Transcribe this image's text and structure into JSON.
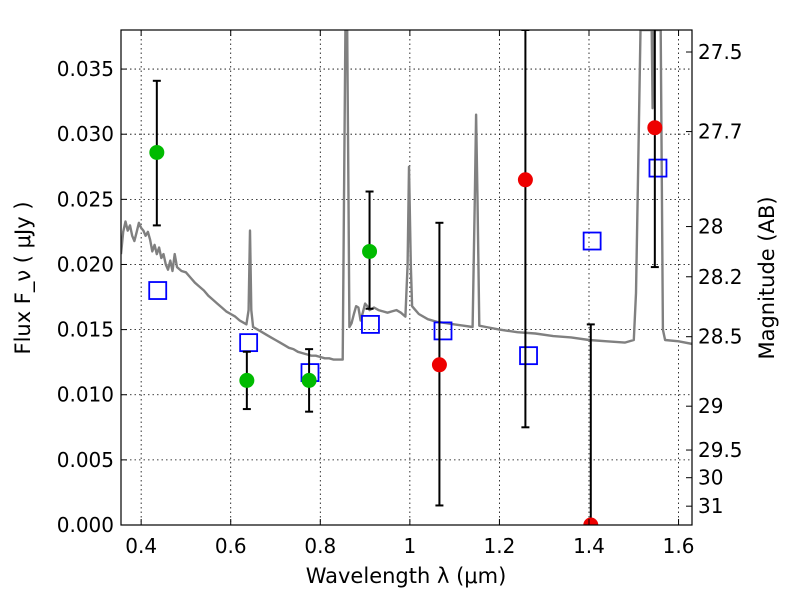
{
  "chart_data": {
    "type": "scatter",
    "title": "",
    "xlabel": "Wavelength  λ (μm)",
    "ylabel": "Flux  F_ν  ( μJy )",
    "ylabel_right": "Magnitude (AB)",
    "xlim": [
      0.355,
      1.63
    ],
    "ylim": [
      0.0,
      0.038
    ],
    "grid": true,
    "x_ticks": [
      {
        "value": 0.4,
        "label": "0.4"
      },
      {
        "value": 0.6,
        "label": "0.6"
      },
      {
        "value": 0.8,
        "label": "0.8"
      },
      {
        "value": 1.0,
        "label": "1"
      },
      {
        "value": 1.2,
        "label": "1.2"
      },
      {
        "value": 1.4,
        "label": "1.4"
      },
      {
        "value": 1.6,
        "label": "1.6"
      }
    ],
    "y_ticks": [
      {
        "value": 0.0,
        "label": "0.000"
      },
      {
        "value": 0.005,
        "label": "0.005"
      },
      {
        "value": 0.01,
        "label": "0.010"
      },
      {
        "value": 0.015,
        "label": "0.015"
      },
      {
        "value": 0.02,
        "label": "0.020"
      },
      {
        "value": 0.025,
        "label": "0.025"
      },
      {
        "value": 0.03,
        "label": "0.030"
      },
      {
        "value": 0.035,
        "label": "0.035"
      }
    ],
    "right_ticks": [
      {
        "mag": 27.5,
        "label": "27.5"
      },
      {
        "mag": 27.7,
        "label": "27.7"
      },
      {
        "mag": 28.0,
        "label": "28"
      },
      {
        "mag": 28.2,
        "label": "28.2"
      },
      {
        "mag": 28.5,
        "label": "28.5"
      },
      {
        "mag": 29.0,
        "label": "29"
      },
      {
        "mag": 29.5,
        "label": "29.5"
      },
      {
        "mag": 30.0,
        "label": "30"
      },
      {
        "mag": 31.0,
        "label": "31"
      }
    ],
    "series": [
      {
        "role": "model-spectrum",
        "style": "line",
        "color": "#808080",
        "points": [
          [
            0.355,
            0.0208
          ],
          [
            0.36,
            0.0225
          ],
          [
            0.365,
            0.0233
          ],
          [
            0.37,
            0.0226
          ],
          [
            0.375,
            0.023
          ],
          [
            0.38,
            0.0222
          ],
          [
            0.385,
            0.0218
          ],
          [
            0.39,
            0.0225
          ],
          [
            0.395,
            0.0232
          ],
          [
            0.4,
            0.0228
          ],
          [
            0.405,
            0.0226
          ],
          [
            0.41,
            0.0222
          ],
          [
            0.415,
            0.0225
          ],
          [
            0.42,
            0.0219
          ],
          [
            0.425,
            0.021
          ],
          [
            0.43,
            0.0215
          ],
          [
            0.435,
            0.0208
          ],
          [
            0.44,
            0.0213
          ],
          [
            0.445,
            0.0205
          ],
          [
            0.45,
            0.0208
          ],
          [
            0.455,
            0.02
          ],
          [
            0.46,
            0.0196
          ],
          [
            0.465,
            0.0203
          ],
          [
            0.47,
            0.0195
          ],
          [
            0.475,
            0.0208
          ],
          [
            0.48,
            0.0198
          ],
          [
            0.49,
            0.0195
          ],
          [
            0.5,
            0.0194
          ],
          [
            0.51,
            0.019
          ],
          [
            0.52,
            0.0186
          ],
          [
            0.53,
            0.0183
          ],
          [
            0.54,
            0.018
          ],
          [
            0.55,
            0.0176
          ],
          [
            0.56,
            0.0173
          ],
          [
            0.57,
            0.017
          ],
          [
            0.58,
            0.0167
          ],
          [
            0.59,
            0.0164
          ],
          [
            0.6,
            0.0162
          ],
          [
            0.61,
            0.016
          ],
          [
            0.62,
            0.0157
          ],
          [
            0.63,
            0.0155
          ],
          [
            0.635,
            0.0154
          ],
          [
            0.64,
            0.0165
          ],
          [
            0.643,
            0.0226
          ],
          [
            0.646,
            0.0165
          ],
          [
            0.65,
            0.0152
          ],
          [
            0.66,
            0.015
          ],
          [
            0.67,
            0.0148
          ],
          [
            0.68,
            0.0146
          ],
          [
            0.69,
            0.0144
          ],
          [
            0.7,
            0.0142
          ],
          [
            0.71,
            0.014
          ],
          [
            0.72,
            0.0138
          ],
          [
            0.73,
            0.0136
          ],
          [
            0.74,
            0.0135
          ],
          [
            0.75,
            0.0133
          ],
          [
            0.76,
            0.0132
          ],
          [
            0.77,
            0.0131
          ],
          [
            0.78,
            0.013
          ],
          [
            0.79,
            0.013
          ],
          [
            0.8,
            0.0129
          ],
          [
            0.81,
            0.0128
          ],
          [
            0.82,
            0.0128
          ],
          [
            0.83,
            0.0127
          ],
          [
            0.84,
            0.0127
          ],
          [
            0.85,
            0.0127
          ],
          [
            0.853,
            0.025
          ],
          [
            0.856,
            0.038
          ],
          [
            0.86,
            0.038
          ],
          [
            0.863,
            0.025
          ],
          [
            0.865,
            0.0152
          ],
          [
            0.87,
            0.0155
          ],
          [
            0.875,
            0.0162
          ],
          [
            0.88,
            0.0168
          ],
          [
            0.885,
            0.0167
          ],
          [
            0.89,
            0.0157
          ],
          [
            0.895,
            0.0163
          ],
          [
            0.9,
            0.017
          ],
          [
            0.905,
            0.0168
          ],
          [
            0.91,
            0.0165
          ],
          [
            0.92,
            0.0167
          ],
          [
            0.93,
            0.0165
          ],
          [
            0.94,
            0.0164
          ],
          [
            0.95,
            0.0163
          ],
          [
            0.96,
            0.0164
          ],
          [
            0.97,
            0.0165
          ],
          [
            0.98,
            0.0163
          ],
          [
            0.99,
            0.016
          ],
          [
            0.995,
            0.02
          ],
          [
            0.998,
            0.0275
          ],
          [
            1.002,
            0.02
          ],
          [
            1.005,
            0.0168
          ],
          [
            1.01,
            0.0166
          ],
          [
            1.02,
            0.0162
          ],
          [
            1.04,
            0.0158
          ],
          [
            1.06,
            0.0156
          ],
          [
            1.08,
            0.0155
          ],
          [
            1.1,
            0.0154
          ],
          [
            1.12,
            0.0153
          ],
          [
            1.14,
            0.0152
          ],
          [
            1.145,
            0.025
          ],
          [
            1.148,
            0.0315
          ],
          [
            1.151,
            0.025
          ],
          [
            1.155,
            0.0153
          ],
          [
            1.17,
            0.0152
          ],
          [
            1.2,
            0.015
          ],
          [
            1.24,
            0.0148
          ],
          [
            1.28,
            0.0147
          ],
          [
            1.32,
            0.0145
          ],
          [
            1.36,
            0.0144
          ],
          [
            1.4,
            0.0142
          ],
          [
            1.44,
            0.0141
          ],
          [
            1.48,
            0.014
          ],
          [
            1.5,
            0.0142
          ],
          [
            1.505,
            0.0178
          ],
          [
            1.51,
            0.028
          ],
          [
            1.515,
            0.038
          ],
          [
            1.54,
            0.038
          ],
          [
            1.542,
            0.032
          ],
          [
            1.545,
            0.038
          ],
          [
            1.56,
            0.038
          ],
          [
            1.565,
            0.015
          ],
          [
            1.57,
            0.0142
          ],
          [
            1.6,
            0.0141
          ],
          [
            1.63,
            0.0139
          ]
        ]
      },
      {
        "role": "model-photometry",
        "style": "open-square",
        "color": "#0000ff",
        "points": [
          [
            0.437,
            0.018
          ],
          [
            0.64,
            0.014
          ],
          [
            0.777,
            0.0117
          ],
          [
            0.912,
            0.0154
          ],
          [
            1.074,
            0.0149
          ],
          [
            1.265,
            0.013
          ],
          [
            1.407,
            0.0218
          ],
          [
            1.554,
            0.0274
          ]
        ]
      },
      {
        "role": "detections",
        "style": "filled-circle",
        "color": "#00bb00",
        "points": [
          {
            "x": 0.435,
            "y": 0.0286,
            "err": [
              0.023,
              0.0341
            ]
          },
          {
            "x": 0.636,
            "y": 0.0111,
            "err": [
              0.0089,
              0.0133
            ]
          },
          {
            "x": 0.775,
            "y": 0.0111,
            "err": [
              0.0087,
              0.0135
            ]
          },
          {
            "x": 0.91,
            "y": 0.021,
            "err": [
              0.0166,
              0.0256
            ]
          }
        ]
      },
      {
        "role": "upper-limits",
        "style": "filled-circle",
        "color": "#ee0000",
        "points": [
          {
            "x": 1.066,
            "y": 0.0123,
            "err": [
              0.0015,
              0.0232
            ]
          },
          {
            "x": 1.258,
            "y": 0.0265,
            "err": [
              0.0075,
              0.038
            ]
          },
          {
            "x": 1.404,
            "y": 0.0,
            "err": [
              0.0,
              0.0154
            ]
          },
          {
            "x": 1.547,
            "y": 0.0305,
            "err": [
              0.0198,
              0.0385
            ]
          }
        ]
      }
    ]
  }
}
